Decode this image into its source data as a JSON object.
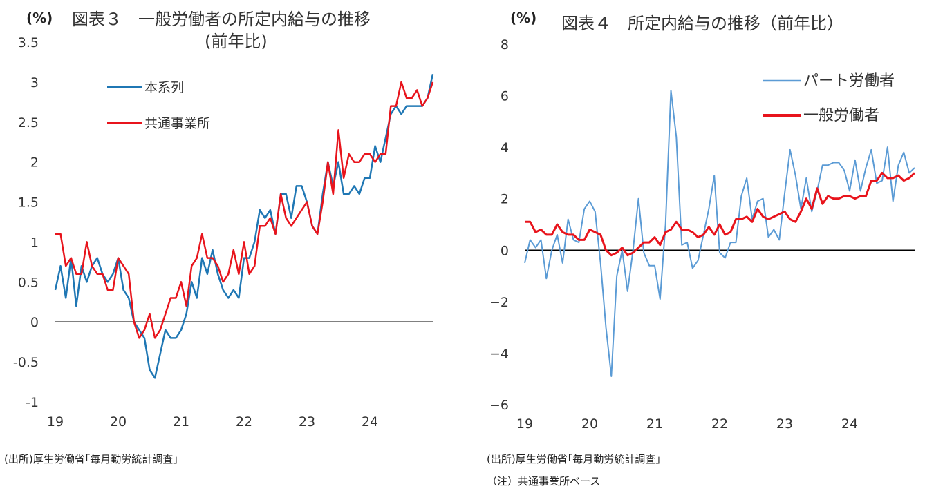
{
  "chart_data": [
    {
      "type": "line",
      "unit_label": "(%)",
      "title": "図表３　一般労働者の所定内給与の推移",
      "subtitle": "(前年比)",
      "ylim": [
        -1,
        3.5
      ],
      "yticks": [
        "3.5",
        "3",
        "2.5",
        "2",
        "1.5",
        "1",
        "0.5",
        "0",
        "-0.5",
        "-1"
      ],
      "xlim": [
        0,
        72
      ],
      "xticks": [
        {
          "pos": 0,
          "label": "19"
        },
        {
          "pos": 12,
          "label": "20"
        },
        {
          "pos": 24,
          "label": "21"
        },
        {
          "pos": 36,
          "label": "22"
        },
        {
          "pos": 48,
          "label": "23"
        },
        {
          "pos": 60,
          "label": "24"
        }
      ],
      "legend_placement": "top-left",
      "zero_line": true,
      "series": [
        {
          "name": "本系列",
          "color": "#1f77b4",
          "values": [
            0.4,
            0.7,
            0.3,
            0.8,
            0.2,
            0.7,
            0.5,
            0.7,
            0.8,
            0.6,
            0.5,
            0.6,
            0.8,
            0.4,
            0.3,
            0.0,
            -0.1,
            -0.2,
            -0.6,
            -0.7,
            -0.4,
            -0.1,
            -0.2,
            -0.2,
            -0.1,
            0.1,
            0.5,
            0.3,
            0.8,
            0.6,
            0.9,
            0.6,
            0.4,
            0.3,
            0.4,
            0.3,
            0.8,
            0.8,
            1.0,
            1.4,
            1.3,
            1.4,
            1.1,
            1.6,
            1.6,
            1.3,
            1.7,
            1.7,
            1.5,
            1.2,
            1.1,
            1.6,
            2.0,
            1.7,
            2.0,
            1.6,
            1.6,
            1.7,
            1.6,
            1.8,
            1.8,
            2.2,
            2.0,
            2.3,
            2.6,
            2.7,
            2.6,
            2.7,
            2.7,
            2.7,
            2.7,
            2.8,
            3.1
          ]
        },
        {
          "name": "共通事業所",
          "color": "#e8141c",
          "values": [
            1.1,
            1.1,
            0.7,
            0.8,
            0.6,
            0.6,
            1.0,
            0.7,
            0.6,
            0.6,
            0.4,
            0.4,
            0.8,
            0.7,
            0.6,
            0.0,
            -0.2,
            -0.1,
            0.1,
            -0.2,
            -0.1,
            0.1,
            0.3,
            0.3,
            0.5,
            0.2,
            0.7,
            0.8,
            1.1,
            0.8,
            0.8,
            0.7,
            0.5,
            0.6,
            0.9,
            0.6,
            1.0,
            0.6,
            0.7,
            1.2,
            1.2,
            1.3,
            1.1,
            1.6,
            1.3,
            1.2,
            1.3,
            1.4,
            1.5,
            1.2,
            1.1,
            1.5,
            2.0,
            1.6,
            2.4,
            1.8,
            2.1,
            2.0,
            2.0,
            2.1,
            2.1,
            2.0,
            2.1,
            2.1,
            2.7,
            2.7,
            3.0,
            2.8,
            2.8,
            2.9,
            2.7,
            2.8,
            3.0
          ]
        }
      ]
    },
    {
      "type": "line",
      "unit_label": "(%)",
      "title": "図表４　所定内給与の推移（前年比）",
      "subtitle": "",
      "ylim": [
        -6,
        8
      ],
      "yticks": [
        "8",
        "6",
        "4",
        "2",
        "0",
        "−2",
        "−4",
        "−6"
      ],
      "xlim": [
        0,
        72
      ],
      "xticks": [
        {
          "pos": 0,
          "label": "19"
        },
        {
          "pos": 12,
          "label": "20"
        },
        {
          "pos": 24,
          "label": "21"
        },
        {
          "pos": 36,
          "label": "22"
        },
        {
          "pos": 48,
          "label": "23"
        },
        {
          "pos": 60,
          "label": "24"
        }
      ],
      "legend_placement": "top-right",
      "zero_line": true,
      "series": [
        {
          "name": "パート労働者",
          "color": "#5b9bd5",
          "values": [
            -0.5,
            0.4,
            0.1,
            0.4,
            -1.1,
            0.0,
            0.6,
            -0.5,
            1.2,
            0.4,
            0.3,
            1.6,
            1.9,
            1.5,
            -0.5,
            -3.0,
            -4.9,
            -1.0,
            0.0,
            -1.6,
            0.0,
            2.0,
            -0.1,
            -0.6,
            -0.6,
            -1.9,
            1.0,
            6.2,
            4.4,
            0.2,
            0.3,
            -0.7,
            -0.4,
            0.6,
            1.6,
            2.9,
            -0.1,
            -0.3,
            0.3,
            0.3,
            2.1,
            2.8,
            1.2,
            1.9,
            2.0,
            0.5,
            0.8,
            0.4,
            2.2,
            3.9,
            2.9,
            1.6,
            2.8,
            1.5,
            2.3,
            3.3,
            3.3,
            3.4,
            3.4,
            3.1,
            2.3,
            3.5,
            2.3,
            3.2,
            3.9,
            2.6,
            2.7,
            4.0,
            1.9,
            3.3,
            3.8,
            3.0,
            3.2
          ]
        },
        {
          "name": "一般労働者",
          "color": "#e8141c",
          "values": [
            1.1,
            1.1,
            0.7,
            0.8,
            0.6,
            0.6,
            1.0,
            0.7,
            0.6,
            0.6,
            0.4,
            0.4,
            0.8,
            0.7,
            0.6,
            0.0,
            -0.2,
            -0.1,
            0.1,
            -0.2,
            -0.1,
            0.1,
            0.3,
            0.3,
            0.5,
            0.2,
            0.7,
            0.8,
            1.1,
            0.8,
            0.8,
            0.7,
            0.5,
            0.6,
            0.9,
            0.6,
            1.0,
            0.6,
            0.7,
            1.2,
            1.2,
            1.3,
            1.1,
            1.6,
            1.3,
            1.2,
            1.3,
            1.4,
            1.5,
            1.2,
            1.1,
            1.5,
            2.0,
            1.6,
            2.4,
            1.8,
            2.1,
            2.0,
            2.0,
            2.1,
            2.1,
            2.0,
            2.1,
            2.1,
            2.7,
            2.7,
            3.0,
            2.8,
            2.8,
            2.9,
            2.7,
            2.8,
            3.0
          ]
        }
      ]
    }
  ],
  "notes": {
    "left_source": "(出所)厚生労働省｢毎月勤労統計調査｣",
    "right_source": "(出所)厚生労働省｢毎月勤労統計調査｣",
    "right_note": "（注）共通事業所ベース"
  }
}
